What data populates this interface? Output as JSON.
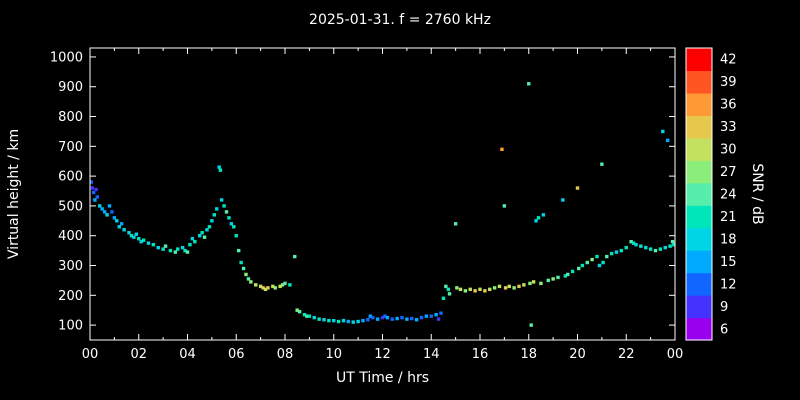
{
  "chart_data": {
    "type": "scatter",
    "title": "2025-01-31. f = 2760 kHz",
    "xlabel": "UT Time / hrs",
    "ylabel": "Virtual height / km",
    "xlim": [
      0,
      24
    ],
    "ylim": [
      50,
      1030
    ],
    "x_ticks": [
      0,
      2,
      4,
      6,
      8,
      10,
      12,
      14,
      16,
      18,
      20,
      22,
      24
    ],
    "x_tick_labels": [
      "00",
      "02",
      "04",
      "06",
      "08",
      "10",
      "12",
      "14",
      "16",
      "18",
      "20",
      "22",
      "00"
    ],
    "y_ticks": [
      100,
      200,
      300,
      400,
      500,
      600,
      700,
      800,
      900,
      1000
    ],
    "background": "#000000",
    "grid": false,
    "colorbar": {
      "label": "SNR / dB",
      "levels": [
        6,
        9,
        12,
        15,
        18,
        21,
        24,
        27,
        30,
        33,
        36,
        39,
        42
      ],
      "colors": [
        "#9900ee",
        "#4433ff",
        "#1166ff",
        "#00aaff",
        "#00d5e6",
        "#00e6bb",
        "#55eeaa",
        "#8cee7a",
        "#c3e05f",
        "#e6c84d",
        "#ff9933",
        "#ff5522",
        "#ff0000"
      ]
    },
    "points_format": "[ut_hours, virtual_height_km, snr_db]",
    "points": [
      [
        0.05,
        580,
        12
      ],
      [
        0.1,
        560,
        9
      ],
      [
        0.15,
        545,
        12
      ],
      [
        0.2,
        520,
        15
      ],
      [
        0.25,
        555,
        9
      ],
      [
        0.3,
        530,
        12
      ],
      [
        0.4,
        500,
        18
      ],
      [
        0.5,
        490,
        15
      ],
      [
        0.6,
        480,
        15
      ],
      [
        0.7,
        470,
        18
      ],
      [
        0.8,
        500,
        15
      ],
      [
        0.9,
        480,
        12
      ],
      [
        1.0,
        460,
        15
      ],
      [
        1.1,
        450,
        18
      ],
      [
        1.2,
        430,
        18
      ],
      [
        1.3,
        440,
        15
      ],
      [
        1.4,
        420,
        18
      ],
      [
        1.6,
        410,
        18
      ],
      [
        1.7,
        400,
        21
      ],
      [
        1.8,
        395,
        18
      ],
      [
        1.9,
        405,
        18
      ],
      [
        2.0,
        390,
        21
      ],
      [
        2.1,
        380,
        18
      ],
      [
        2.2,
        385,
        21
      ],
      [
        2.4,
        375,
        18
      ],
      [
        2.6,
        370,
        21
      ],
      [
        2.8,
        360,
        18
      ],
      [
        3.0,
        355,
        21
      ],
      [
        3.1,
        365,
        24
      ],
      [
        3.3,
        350,
        21
      ],
      [
        3.5,
        345,
        24
      ],
      [
        3.6,
        355,
        21
      ],
      [
        3.8,
        360,
        18
      ],
      [
        3.9,
        350,
        21
      ],
      [
        4.0,
        345,
        24
      ],
      [
        4.1,
        370,
        21
      ],
      [
        4.2,
        390,
        18
      ],
      [
        4.3,
        380,
        21
      ],
      [
        4.5,
        400,
        18
      ],
      [
        4.6,
        410,
        21
      ],
      [
        4.7,
        395,
        24
      ],
      [
        4.8,
        420,
        18
      ],
      [
        4.9,
        430,
        21
      ],
      [
        5.0,
        450,
        18
      ],
      [
        5.1,
        470,
        21
      ],
      [
        5.2,
        490,
        18
      ],
      [
        5.3,
        630,
        18
      ],
      [
        5.35,
        620,
        21
      ],
      [
        5.4,
        520,
        18
      ],
      [
        5.5,
        500,
        21
      ],
      [
        5.6,
        480,
        24
      ],
      [
        5.7,
        460,
        21
      ],
      [
        5.8,
        440,
        18
      ],
      [
        5.9,
        430,
        21
      ],
      [
        6.0,
        400,
        21
      ],
      [
        6.1,
        350,
        24
      ],
      [
        6.2,
        310,
        21
      ],
      [
        6.3,
        290,
        24
      ],
      [
        6.4,
        270,
        27
      ],
      [
        6.5,
        255,
        24
      ],
      [
        6.6,
        245,
        27
      ],
      [
        6.8,
        235,
        30
      ],
      [
        7.0,
        230,
        30
      ],
      [
        7.1,
        225,
        33
      ],
      [
        7.2,
        220,
        30
      ],
      [
        7.3,
        225,
        33
      ],
      [
        7.5,
        230,
        30
      ],
      [
        7.6,
        225,
        27
      ],
      [
        7.8,
        230,
        30
      ],
      [
        7.9,
        235,
        27
      ],
      [
        8.0,
        240,
        24
      ],
      [
        8.2,
        235,
        21
      ],
      [
        8.4,
        330,
        24
      ],
      [
        8.5,
        150,
        27
      ],
      [
        8.6,
        145,
        24
      ],
      [
        8.8,
        135,
        21
      ],
      [
        8.9,
        130,
        24
      ],
      [
        9.0,
        130,
        21
      ],
      [
        9.2,
        125,
        18
      ],
      [
        9.4,
        120,
        21
      ],
      [
        9.6,
        118,
        18
      ],
      [
        9.8,
        115,
        21
      ],
      [
        10.0,
        115,
        18
      ],
      [
        10.2,
        112,
        21
      ],
      [
        10.4,
        115,
        18
      ],
      [
        10.6,
        112,
        15
      ],
      [
        10.8,
        110,
        18
      ],
      [
        11.0,
        112,
        18
      ],
      [
        11.2,
        115,
        15
      ],
      [
        11.4,
        118,
        12
      ],
      [
        11.5,
        130,
        15
      ],
      [
        11.6,
        125,
        12
      ],
      [
        11.8,
        120,
        15
      ],
      [
        12.0,
        125,
        9
      ],
      [
        12.1,
        130,
        12
      ],
      [
        12.2,
        125,
        15
      ],
      [
        12.4,
        120,
        12
      ],
      [
        12.6,
        122,
        15
      ],
      [
        12.8,
        125,
        12
      ],
      [
        13.0,
        120,
        15
      ],
      [
        13.2,
        122,
        12
      ],
      [
        13.4,
        118,
        15
      ],
      [
        13.6,
        125,
        12
      ],
      [
        13.8,
        130,
        15
      ],
      [
        14.0,
        130,
        12
      ],
      [
        14.2,
        135,
        15
      ],
      [
        14.3,
        120,
        9
      ],
      [
        14.4,
        140,
        12
      ],
      [
        14.5,
        190,
        21
      ],
      [
        14.6,
        230,
        24
      ],
      [
        14.7,
        220,
        21
      ],
      [
        14.75,
        205,
        24
      ],
      [
        15.0,
        440,
        24
      ],
      [
        15.05,
        225,
        27
      ],
      [
        15.2,
        220,
        30
      ],
      [
        15.4,
        215,
        27
      ],
      [
        15.6,
        220,
        30
      ],
      [
        15.8,
        215,
        33
      ],
      [
        16.0,
        220,
        30
      ],
      [
        16.2,
        215,
        33
      ],
      [
        16.4,
        220,
        30
      ],
      [
        16.6,
        225,
        27
      ],
      [
        16.8,
        230,
        30
      ],
      [
        16.9,
        690,
        36
      ],
      [
        17.0,
        500,
        24
      ],
      [
        17.05,
        225,
        33
      ],
      [
        17.2,
        230,
        30
      ],
      [
        17.4,
        225,
        27
      ],
      [
        17.6,
        230,
        33
      ],
      [
        17.8,
        235,
        30
      ],
      [
        18.0,
        910,
        24
      ],
      [
        18.05,
        240,
        27
      ],
      [
        18.1,
        100,
        24
      ],
      [
        18.2,
        245,
        30
      ],
      [
        18.3,
        450,
        18
      ],
      [
        18.4,
        460,
        21
      ],
      [
        18.5,
        240,
        27
      ],
      [
        18.6,
        470,
        18
      ],
      [
        18.8,
        250,
        24
      ],
      [
        19.0,
        255,
        27
      ],
      [
        19.2,
        260,
        24
      ],
      [
        19.4,
        520,
        18
      ],
      [
        19.5,
        265,
        21
      ],
      [
        19.6,
        270,
        24
      ],
      [
        19.8,
        280,
        21
      ],
      [
        20.0,
        560,
        33
      ],
      [
        20.05,
        290,
        24
      ],
      [
        20.2,
        300,
        21
      ],
      [
        20.4,
        310,
        24
      ],
      [
        20.6,
        320,
        27
      ],
      [
        20.8,
        330,
        21
      ],
      [
        20.9,
        300,
        18
      ],
      [
        21.0,
        640,
        24
      ],
      [
        21.05,
        310,
        21
      ],
      [
        21.2,
        330,
        24
      ],
      [
        21.4,
        340,
        21
      ],
      [
        21.6,
        345,
        18
      ],
      [
        21.8,
        350,
        21
      ],
      [
        22.0,
        360,
        21
      ],
      [
        22.2,
        380,
        24
      ],
      [
        22.3,
        375,
        21
      ],
      [
        22.4,
        370,
        18
      ],
      [
        22.6,
        365,
        21
      ],
      [
        22.8,
        360,
        18
      ],
      [
        23.0,
        355,
        21
      ],
      [
        23.2,
        350,
        24
      ],
      [
        23.4,
        355,
        21
      ],
      [
        23.5,
        750,
        18
      ],
      [
        23.6,
        360,
        18
      ],
      [
        23.7,
        720,
        15
      ],
      [
        23.8,
        365,
        21
      ],
      [
        23.9,
        380,
        24
      ],
      [
        23.95,
        370,
        21
      ]
    ]
  }
}
